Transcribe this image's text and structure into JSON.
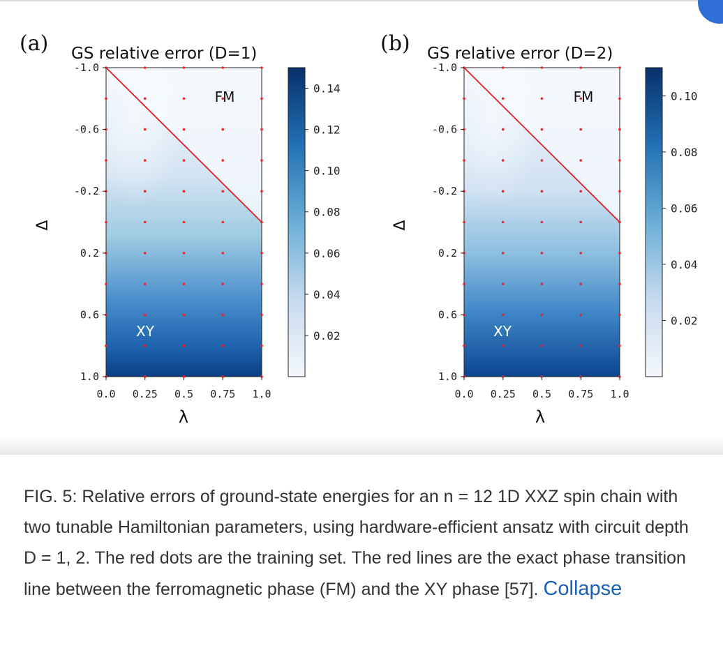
{
  "figure": {
    "panels": [
      {
        "letter": "(a)",
        "title": "GS relative error (D=1)",
        "ylabel": "Δ",
        "xlabel": "λ",
        "phase_top": "FM",
        "phase_bottom": "XY",
        "colorbar_ticks": [
          "0.14",
          "0.12",
          "0.10",
          "0.08",
          "0.06",
          "0.04",
          "0.02"
        ],
        "colorbar_values": [
          0.14,
          0.12,
          0.1,
          0.08,
          0.06,
          0.04,
          0.02
        ],
        "colorbar_range": [
          0.0,
          0.15
        ]
      },
      {
        "letter": "(b)",
        "title": "GS relative error (D=2)",
        "ylabel": "Δ",
        "xlabel": "λ",
        "phase_top": "FM",
        "phase_bottom": "XY",
        "colorbar_ticks": [
          "0.10",
          "0.08",
          "0.06",
          "0.04",
          "0.02"
        ],
        "colorbar_values": [
          0.1,
          0.08,
          0.06,
          0.04,
          0.02
        ],
        "colorbar_range": [
          0.0,
          0.11
        ]
      }
    ],
    "x_ticks": [
      "0.0",
      "0.25",
      "0.5",
      "0.75",
      "1.0"
    ],
    "x_tick_values": [
      0.0,
      0.25,
      0.5,
      0.75,
      1.0
    ],
    "y_ticks": [
      "-1.0",
      "-0.6",
      "-0.2",
      "0.2",
      "0.6",
      "1.0"
    ],
    "y_tick_values": [
      -1.0,
      -0.6,
      -0.2,
      0.2,
      0.6,
      1.0
    ],
    "training_lambda": [
      0.0,
      0.25,
      0.5,
      0.75,
      1.0
    ],
    "training_delta": [
      -1.0,
      -0.8,
      -0.6,
      -0.4,
      -0.2,
      0.0,
      0.2,
      0.4,
      0.6,
      0.8,
      1.0
    ],
    "transition_line": [
      [
        0.0,
        -1.0
      ],
      [
        1.0,
        0.0
      ]
    ],
    "colors": {
      "dot": "#e8242a",
      "line": "#e02020",
      "cmap_low": "#f4f8fd",
      "cmap_high": "#08306b"
    }
  },
  "caption": {
    "text": "FIG. 5: Relative errors of ground-state energies for an n = 12 1D XXZ spin chain with two tunable Hamiltonian parameters, using hardware-efficient ansatz with circuit depth D = 1, 2. The red dots are the training set. The red lines are the exact phase transition line between the ferromagnetic phase (FM) and the XY phase [57].",
    "link": "Collapse"
  }
}
